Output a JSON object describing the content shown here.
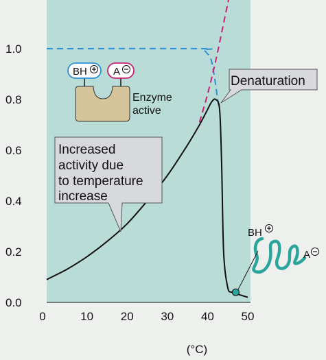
{
  "chart_data": {
    "type": "line",
    "xlabel": "(°C)",
    "ylabel": "",
    "xlim": [
      0,
      50
    ],
    "ylim": [
      0,
      1.2
    ],
    "xticks": [
      0,
      10,
      20,
      30,
      40,
      50
    ],
    "yticks": [
      0.0,
      0.2,
      0.4,
      0.6,
      0.8,
      1.0
    ],
    "ytick_labels": [
      "0.0",
      "0.2",
      "0.4",
      "0.6",
      "0.8",
      "1.0"
    ],
    "xtick_labels": [
      "0",
      "10",
      "20",
      "30",
      "40",
      "50"
    ],
    "series": [
      {
        "style": "solid",
        "color": "#111111",
        "x": [
          0,
          5,
          10,
          15,
          20,
          25,
          30,
          35,
          38,
          40,
          41,
          42,
          43,
          43.5,
          44,
          45,
          46,
          47,
          48,
          50
        ],
        "y": [
          0.09,
          0.13,
          0.18,
          0.24,
          0.31,
          0.4,
          0.5,
          0.62,
          0.7,
          0.76,
          0.79,
          0.8,
          0.76,
          0.55,
          0.2,
          0.06,
          0.04,
          0.035,
          0.03,
          0.02
        ]
      },
      {
        "style": "dashed",
        "color": "#2a8fd6",
        "x": [
          0,
          38,
          39,
          40,
          41,
          42,
          42.5,
          43
        ],
        "y": [
          1.0,
          1.0,
          0.995,
          0.98,
          0.95,
          0.86,
          0.8,
          0.76
        ]
      },
      {
        "style": "dashed",
        "color": "#c81e78",
        "x": [
          38,
          40,
          42,
          44,
          46,
          46.6
        ],
        "y": [
          0.71,
          0.82,
          0.95,
          1.1,
          1.25,
          1.29
        ]
      }
    ],
    "marker": {
      "x": 47,
      "y": 0.04,
      "color": "#2aa59c"
    },
    "annotations": [
      {
        "name": "denaturation",
        "lines": [
          "Denaturation"
        ]
      },
      {
        "name": "increased-activity",
        "lines": [
          "Increased",
          "activity due",
          "to temperature",
          "increase"
        ]
      }
    ],
    "enzyme_active": {
      "lines": [
        "Enzyme",
        "active"
      ],
      "ion_bh": "BH",
      "ion_a": "A"
    },
    "enzyme_denatured": {
      "ion_bh": "BH",
      "ion_a": "A"
    }
  },
  "colors": {
    "plot_bg": "#b9ddd6",
    "page_bg": "#eef0ee",
    "callout_fill": "#d8d9dc",
    "enzyme_fill": "#d6c59b",
    "bh_ring": "#2a8fd6",
    "a_ring": "#c81e78",
    "denatured_strand": "#2aa59c"
  }
}
